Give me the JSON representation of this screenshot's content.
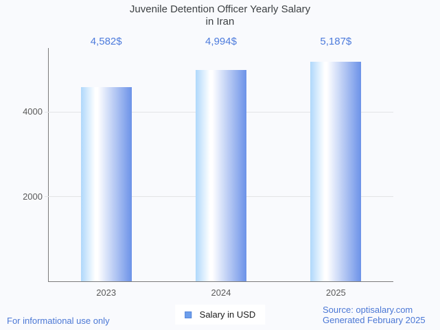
{
  "chart": {
    "title_line1": "Juvenile Detention Officer Yearly Salary",
    "title_line2": "in Iran"
  },
  "chart_data": {
    "type": "bar",
    "title": "Juvenile Detention Officer Yearly Salary in Iran",
    "categories": [
      "2023",
      "2024",
      "2025"
    ],
    "series": [
      {
        "name": "Salary in USD",
        "values": [
          4582,
          4994,
          5187
        ]
      }
    ],
    "value_labels": [
      "4,582$",
      "4,994$",
      "5,187$"
    ],
    "xlabel": "",
    "ylabel": "",
    "ylim": [
      0,
      5506
    ],
    "yticks": [
      2000,
      4000
    ],
    "grid": true,
    "legend_position": "bottom-center",
    "bar_style": "horizontal-gradient-cylinder"
  },
  "legend": {
    "label": "Salary in USD"
  },
  "footer": {
    "disclaimer": "For informational use only",
    "source": "Source: optisalary.com",
    "generated": "Generated February 2025"
  },
  "colors": {
    "background": "#F9FAFD",
    "title_color": "#3C4043",
    "accent_value_label": "#4D7BDC",
    "accent_footer": "#4A77D5",
    "axis_color": "#7A7A7A",
    "grid_color": "#E3E4E6",
    "tick_label_color": "#595959",
    "bar_gradient_left": "#AFD8FB",
    "bar_gradient_highlight": "#FFFFFF",
    "bar_gradient_right": "#6C92E8",
    "legend_swatch": "#6D9EEB",
    "legend_swatch_border": "#5586DC"
  }
}
